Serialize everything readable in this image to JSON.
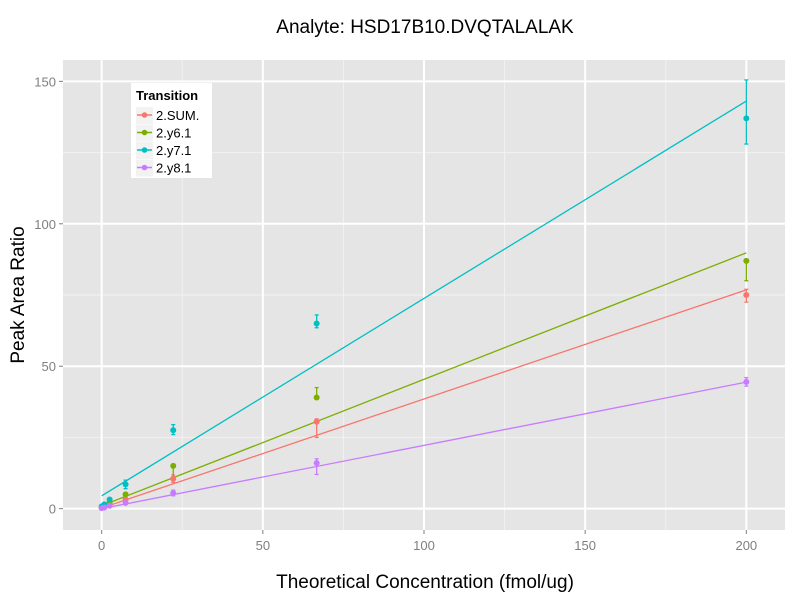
{
  "chart_data": {
    "type": "scatter",
    "title": "Analyte: HSD17B10.DVQTALALAK",
    "xlabel": "Theoretical Concentration (fmol/ug)",
    "ylabel": "Peak Area Ratio",
    "xlim": [
      -12,
      212
    ],
    "ylim": [
      -7.5,
      157.5
    ],
    "x_ticks": [
      0,
      50,
      100,
      150,
      200
    ],
    "y_ticks": [
      0,
      50,
      100,
      150
    ],
    "x_tick_labels": [
      "0",
      "50",
      "100",
      "150",
      "200"
    ],
    "y_tick_labels": [
      "0",
      "50",
      "100",
      "150"
    ],
    "grid": true,
    "legend": {
      "title": "Transition",
      "placement": "top-left",
      "entries": [
        "2.SUM.",
        "2.y6.1",
        "2.y7.1",
        "2.y8.1"
      ]
    },
    "series": [
      {
        "name": "2.SUM.",
        "color": "#F8766D",
        "points": [
          {
            "x": 0,
            "y": 0.3,
            "ymin": 0.1,
            "ymax": 0.5
          },
          {
            "x": 0.82,
            "y": 0.6,
            "ymin": 0.4,
            "ymax": 0.8
          },
          {
            "x": 2.47,
            "y": 1.5,
            "ymin": 1.2,
            "ymax": 1.8
          },
          {
            "x": 7.41,
            "y": 3.2,
            "ymin": 2.6,
            "ymax": 3.8
          },
          {
            "x": 22.2,
            "y": 10.5,
            "ymin": 9.2,
            "ymax": 11.8
          },
          {
            "x": 66.7,
            "y": 30.5,
            "ymin": 25.0,
            "ymax": 31.5
          },
          {
            "x": 200,
            "y": 75.0,
            "ymin": 72.5,
            "ymax": 77.0
          }
        ],
        "fit": {
          "intercept": 0.2,
          "slope": 0.383
        }
      },
      {
        "name": "2.y6.1",
        "color": "#7CAE00",
        "points": [
          {
            "x": 0,
            "y": 0.5,
            "ymin": 0.3,
            "ymax": 0.7
          },
          {
            "x": 0.82,
            "y": 1.0,
            "ymin": 0.8,
            "ymax": 1.2
          },
          {
            "x": 2.47,
            "y": 2.3,
            "ymin": 2.0,
            "ymax": 2.6
          },
          {
            "x": 7.41,
            "y": 5.0,
            "ymin": 4.4,
            "ymax": 5.6
          },
          {
            "x": 22.2,
            "y": 15.0,
            "ymin": 11.0,
            "ymax": 15.5
          },
          {
            "x": 66.7,
            "y": 39.0,
            "ymin": 38.5,
            "ymax": 42.5
          },
          {
            "x": 200,
            "y": 87.0,
            "ymin": 80.0,
            "ymax": 87.5
          }
        ],
        "fit": {
          "intercept": 1.0,
          "slope": 0.444
        }
      },
      {
        "name": "2.y7.1",
        "color": "#00BFC4",
        "points": [
          {
            "x": 0,
            "y": 0.8,
            "ymin": 0.6,
            "ymax": 1.0
          },
          {
            "x": 0.82,
            "y": 1.5,
            "ymin": 1.3,
            "ymax": 1.7
          },
          {
            "x": 2.47,
            "y": 3.2,
            "ymin": 2.8,
            "ymax": 3.6
          },
          {
            "x": 7.41,
            "y": 8.5,
            "ymin": 7.0,
            "ymax": 10.0
          },
          {
            "x": 22.2,
            "y": 27.5,
            "ymin": 26.0,
            "ymax": 29.5
          },
          {
            "x": 66.7,
            "y": 65.0,
            "ymin": 63.5,
            "ymax": 68.0
          },
          {
            "x": 200,
            "y": 137.0,
            "ymin": 128.0,
            "ymax": 150.5
          }
        ],
        "fit": {
          "intercept": 4.5,
          "slope": 0.693
        }
      },
      {
        "name": "2.y8.1",
        "color": "#C77CFF",
        "points": [
          {
            "x": 0,
            "y": 0.2,
            "ymin": 0.0,
            "ymax": 0.4
          },
          {
            "x": 0.82,
            "y": 0.4,
            "ymin": 0.2,
            "ymax": 0.6
          },
          {
            "x": 2.47,
            "y": 1.0,
            "ymin": 0.8,
            "ymax": 1.2
          },
          {
            "x": 7.41,
            "y": 2.0,
            "ymin": 1.6,
            "ymax": 2.4
          },
          {
            "x": 22.2,
            "y": 5.5,
            "ymin": 4.5,
            "ymax": 6.5
          },
          {
            "x": 66.7,
            "y": 16.0,
            "ymin": 12.0,
            "ymax": 17.5
          },
          {
            "x": 200,
            "y": 44.5,
            "ymin": 43.0,
            "ymax": 46.0
          }
        ],
        "fit": {
          "intercept": 0.0,
          "slope": 0.222
        }
      }
    ]
  },
  "colors": {
    "panel_background": "#E5E5E5",
    "grid_major": "#FFFFFF",
    "grid_minor": "#F2F2F2",
    "tick_label": "#7F7F7F"
  }
}
